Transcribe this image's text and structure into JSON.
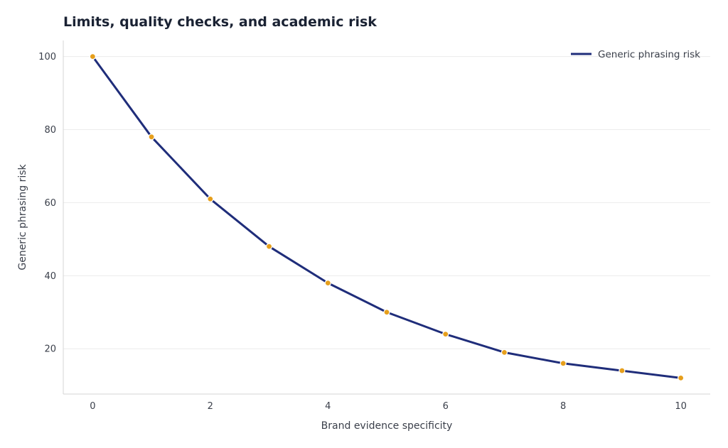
{
  "chart_data": {
    "type": "line",
    "title": "Limits, quality checks, and academic risk",
    "xlabel": "Brand evidence specificity",
    "ylabel": "Generic phrasing risk",
    "x": [
      0,
      1,
      2,
      3,
      4,
      5,
      6,
      7,
      8,
      9,
      10
    ],
    "series": [
      {
        "name": "Generic phrasing risk",
        "values": [
          100,
          78,
          61,
          48,
          38,
          30,
          24,
          19,
          16,
          14,
          12
        ]
      }
    ],
    "xlim": [
      -0.5,
      10.5
    ],
    "ylim": [
      7.6,
      104.4
    ],
    "xticks": [
      0,
      2,
      4,
      6,
      8,
      10
    ],
    "yticks": [
      20,
      40,
      60,
      80,
      100
    ],
    "grid": "horizontal",
    "legend": "top-right",
    "colors": {
      "line": "#1f2d7a",
      "marker": "#e69f1c",
      "marker_edge": "#ffffff",
      "grid": "#ececec",
      "axis": "#d6d6d6"
    }
  }
}
